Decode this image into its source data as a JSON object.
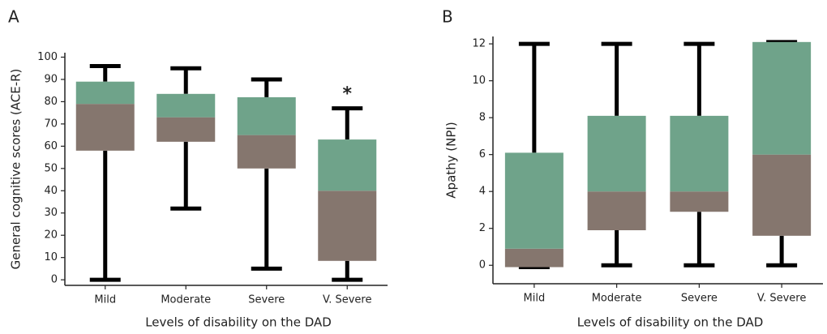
{
  "chart_data": [
    {
      "type": "box",
      "panel_label": "A",
      "ylabel": "General cognitive scores (ACE-R)",
      "xlabel": "Levels of disability on the DAD",
      "categories": [
        "Mild",
        "Moderate",
        "Severe",
        "V. Severe"
      ],
      "whisker_low": [
        0,
        32,
        5,
        0
      ],
      "q1": [
        58,
        62,
        50,
        8.5
      ],
      "median": [
        79,
        73,
        65,
        40
      ],
      "q3": [
        89,
        83.5,
        82,
        63
      ],
      "whisker_high": [
        96,
        95,
        90,
        77
      ],
      "upper_color": "#6fa38a",
      "lower_color": "#85766e",
      "ylim": [
        -2.5,
        102
      ],
      "yticks": [
        0,
        10,
        20,
        30,
        40,
        50,
        60,
        70,
        80,
        90,
        100
      ],
      "annotations": [
        {
          "text": "*",
          "x": "V. Severe"
        }
      ]
    },
    {
      "type": "box",
      "panel_label": "B",
      "ylabel": "Apathy (NPI)",
      "xlabel": "Levels of disability on the DAD",
      "categories": [
        "Mild",
        "Moderate",
        "Severe",
        "V. Severe"
      ],
      "whisker_low": [
        -0.1,
        0,
        0,
        0
      ],
      "q1": [
        -0.1,
        1.9,
        2.9,
        1.6
      ],
      "median": [
        0.9,
        4,
        4,
        6
      ],
      "q3": [
        6.1,
        8.1,
        8.1,
        12.1
      ],
      "whisker_high": [
        12,
        12,
        12,
        12.1
      ],
      "upper_color": "#6fa38a",
      "lower_color": "#85766e",
      "ylim": [
        -1,
        12.4
      ],
      "yticks": [
        0,
        2,
        4,
        6,
        8,
        10,
        12
      ],
      "annotations": []
    }
  ]
}
